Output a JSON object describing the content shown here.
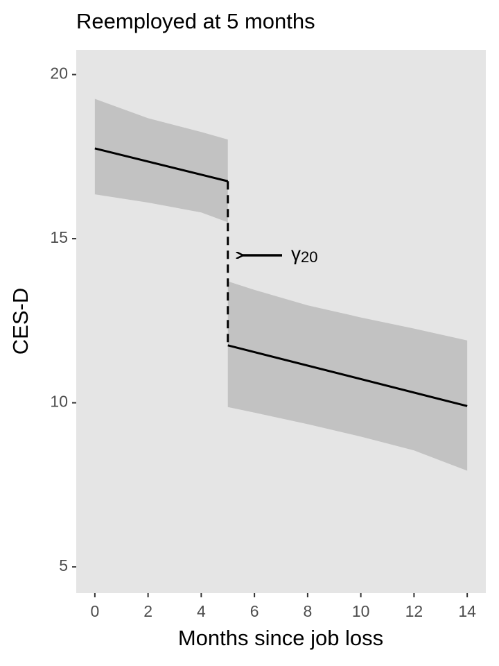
{
  "chart_data": {
    "type": "line",
    "title": "Reemployed at 5 months",
    "x_label": "Months since job loss",
    "y_label": "CES-D",
    "xlim": [
      -0.7,
      14.7
    ],
    "ylim": [
      4.2,
      20.75
    ],
    "xticks": [
      0,
      2,
      4,
      6,
      8,
      10,
      12,
      14
    ],
    "yticks": [
      5,
      10,
      15,
      20
    ],
    "grid": false,
    "background": "#e5e5e5",
    "band_color": "#c2c2c2",
    "series": [
      {
        "color": "#000000",
        "x": [
          0,
          5
        ],
        "values": [
          17.75,
          16.75
        ]
      },
      {
        "color": "#000000",
        "x": [
          5,
          14
        ],
        "values": [
          11.75,
          9.9
        ]
      }
    ],
    "bands": [
      {
        "x": [
          0,
          2,
          4,
          5
        ],
        "upper": [
          19.26,
          18.67,
          18.25,
          18.02
        ],
        "lower": [
          16.35,
          16.1,
          15.8,
          15.5
        ]
      },
      {
        "x": [
          5,
          6,
          8,
          10,
          12,
          14
        ],
        "upper": [
          13.7,
          13.44,
          12.97,
          12.6,
          12.26,
          11.9
        ],
        "lower": [
          9.87,
          9.7,
          9.35,
          8.97,
          8.55,
          7.93
        ]
      }
    ],
    "annotation": {
      "text": "γ",
      "subscript": "20"
    }
  }
}
